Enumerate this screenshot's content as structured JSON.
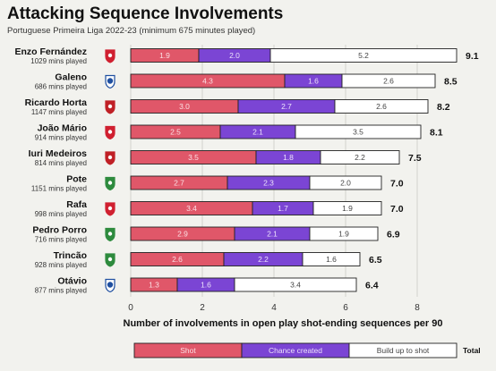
{
  "title": "Attacking Sequence Involvements",
  "subtitle": "Portuguese Primeira Liga 2022-23 (minimum 675 minutes played)",
  "colors": {
    "shot": "#e05769",
    "chance": "#7b45d4",
    "buildup": "#ffffff",
    "border": "#222222",
    "club_sporting": "#2e8b3e",
    "club_benfica": "#d02030",
    "club_porto": "#1f4fa0",
    "club_braga": "#c02026"
  },
  "chart_data": {
    "type": "bar",
    "orientation": "horizontal",
    "stacked": true,
    "xlabel": "Number of involvements in open play shot-ending sequences per 90",
    "xlim": [
      0,
      8
    ],
    "xticks": [
      0,
      2,
      4,
      6,
      8
    ],
    "grid": true,
    "legend": {
      "position": "bottom",
      "labels": [
        "Shot",
        "Chance created",
        "Build up to shot"
      ],
      "total_label": "Total"
    },
    "players": [
      {
        "name": "Enzo Fernández",
        "minutes": "1029 mins played",
        "club": "benfica",
        "shot": 1.9,
        "chance": 2.0,
        "buildup": 5.2,
        "total": 9.1
      },
      {
        "name": "Galeno",
        "minutes": "686 mins played",
        "club": "porto",
        "shot": 4.3,
        "chance": 1.6,
        "buildup": 2.6,
        "total": 8.5
      },
      {
        "name": "Ricardo Horta",
        "minutes": "1147 mins played",
        "club": "braga",
        "shot": 3.0,
        "chance": 2.7,
        "buildup": 2.6,
        "total": 8.2
      },
      {
        "name": "João Mário",
        "minutes": "914 mins played",
        "club": "benfica",
        "shot": 2.5,
        "chance": 2.1,
        "buildup": 3.5,
        "total": 8.1
      },
      {
        "name": "Iuri Medeiros",
        "minutes": "814 mins played",
        "club": "braga",
        "shot": 3.5,
        "chance": 1.8,
        "buildup": 2.2,
        "total": 7.5
      },
      {
        "name": "Pote",
        "minutes": "1151 mins played",
        "club": "sporting",
        "shot": 2.7,
        "chance": 2.3,
        "buildup": 2.0,
        "total": 7.0
      },
      {
        "name": "Rafa",
        "minutes": "998 mins played",
        "club": "benfica",
        "shot": 3.4,
        "chance": 1.7,
        "buildup": 1.9,
        "total": 7.0
      },
      {
        "name": "Pedro Porro",
        "minutes": "716 mins played",
        "club": "sporting",
        "shot": 2.9,
        "chance": 2.1,
        "buildup": 1.9,
        "total": 6.9
      },
      {
        "name": "Trincão",
        "minutes": "928 mins played",
        "club": "sporting",
        "shot": 2.6,
        "chance": 2.2,
        "buildup": 1.6,
        "total": 6.5
      },
      {
        "name": "Otávio",
        "minutes": "877 mins played",
        "club": "porto",
        "shot": 1.3,
        "chance": 1.6,
        "buildup": 3.4,
        "total": 6.4
      }
    ]
  }
}
